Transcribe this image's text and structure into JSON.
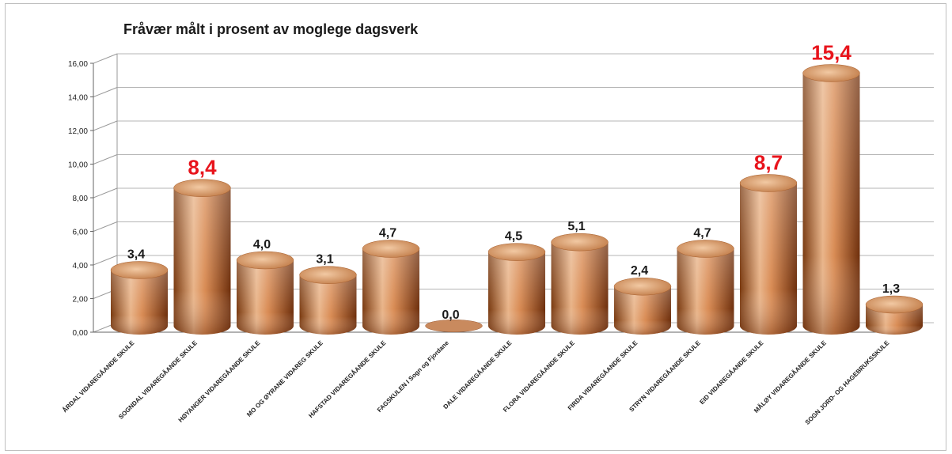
{
  "chart_data": {
    "type": "bar",
    "title": "Fråvær målt i prosent av moglege dagsverk",
    "xlabel": "",
    "ylabel": "",
    "ylim": [
      0,
      16
    ],
    "yticks": [
      "0,00",
      "2,00",
      "4,00",
      "6,00",
      "8,00",
      "10,00",
      "12,00",
      "14,00",
      "16,00"
    ],
    "grid": true,
    "style": "3d-cylinder",
    "bar_color": "#c8733c",
    "highlight_label_color": "#e8141c",
    "categories": [
      "ÅRDAL VIDAREGÅANDE SKULE",
      "SOGNDAL VIDAREGÅANDE SKULE",
      "HØYANGER VIDAREGÅANDE SKULE",
      "MO OG ØYRANE VIDAREG SKULE",
      "HAFSTAD VIDAREGÅANDE SKULE",
      "FAGSKULEN I Sogn og Fjordane",
      "DALE VIDAREGÅANDE SKULE",
      "FLORA VIDAREGÅANDE SKULE",
      "FIRDA VIDAREGÅANDE SKULE",
      "STRYN VIDAREGÅANDE SKULE",
      "EID VIDAREGÅANDE SKULE",
      "MÅLØY VIDAREGÅANDE SKULE",
      "SOGN JORD- OG HAGEBRUKSSKULE"
    ],
    "values": [
      3.4,
      8.4,
      4.0,
      3.1,
      4.7,
      0.0,
      4.5,
      5.1,
      2.4,
      4.7,
      8.7,
      15.4,
      1.3
    ],
    "data_labels": [
      "3,4",
      "8,4",
      "4,0",
      "3,1",
      "4,7",
      "0,0",
      "4,5",
      "5,1",
      "2,4",
      "4,7",
      "8,7",
      "15,4",
      "1,3"
    ],
    "highlighted": [
      false,
      true,
      false,
      false,
      false,
      false,
      false,
      false,
      false,
      false,
      true,
      true,
      false
    ]
  }
}
